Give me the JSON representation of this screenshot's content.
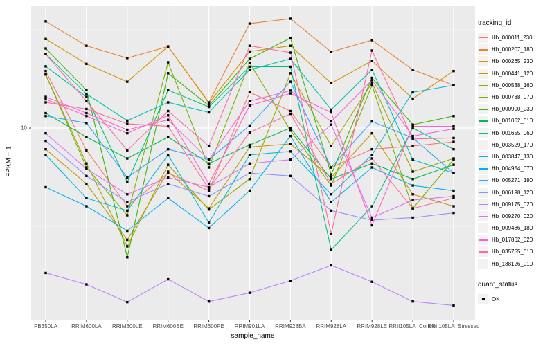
{
  "figure": {
    "background": "#FFFFFF",
    "panel_background": "#EBEBEB",
    "gridline_color": "#FFFFFF",
    "tick_color": "#333333",
    "tick_label_color": "#4D4D4D"
  },
  "axes": {
    "x": {
      "title": "sample_name",
      "tick_labels": [
        "PB350LA",
        "RRIM600LA",
        "RRIM600LE",
        "RRIM600SE",
        "RRIM600PE",
        "RRIM901LA",
        "RRIM928BA",
        "RRIM928LA",
        "RRIM928LE",
        "RRII105LA_Control",
        "RRII105LA_Stressed"
      ]
    },
    "y": {
      "title": "FPKM + 1",
      "scale": "log10",
      "tick_labels": [
        "10"
      ],
      "major_breaks": [
        10
      ],
      "minor_breaks": [
        3.162,
        31.623
      ]
    }
  },
  "legend": {
    "tracking": {
      "title": "tracking_id"
    },
    "quant": {
      "title": "quant_status",
      "items": [
        {
          "label": "OK",
          "marker": "black-square"
        }
      ]
    }
  },
  "chart_data": {
    "type": "line",
    "title": "",
    "xlabel": "sample_name",
    "ylabel": "FPKM + 1",
    "y_scale": "log10",
    "ylim": [
      1.05,
      45
    ],
    "grid": true,
    "legend_position": "right",
    "point_marker": {
      "shape": "square",
      "color": "#000000",
      "size": 3.4
    },
    "categories": [
      "PB350LA",
      "RRIM600LA",
      "RRIM600LE",
      "RRIM600SE",
      "RRIM600PE",
      "RRIM901LA",
      "RRIM928BA",
      "RRIM928LA",
      "RRIM928LE",
      "RRII105LA_Control",
      "RRII105LA_Stressed"
    ],
    "series": [
      {
        "name": "Hb_000011_230",
        "color": "#F8766D",
        "values": [
          19.5,
          7.7,
          4.0,
          5.9,
          4.8,
          15.2,
          12.2,
          6.3,
          7.8,
          8.1,
          8.5
        ]
      },
      {
        "name": "Hb_000207_180",
        "color": "#EA8331",
        "values": [
          34.9,
          26.2,
          22.7,
          26.0,
          13.5,
          34.0,
          36.0,
          24.4,
          28.0,
          19.8,
          16.5
        ]
      },
      {
        "name": "Hb_000265_230",
        "color": "#D89000",
        "values": [
          28.4,
          21.2,
          17.2,
          26.0,
          13.4,
          24.5,
          26.2,
          16.9,
          22.0,
          14.1,
          19.5
        ]
      },
      {
        "name": "Hb_000441_120",
        "color": "#C09B00",
        "values": [
          7.8,
          5.2,
          2.7,
          6.0,
          3.9,
          8.0,
          8.3,
          5.6,
          9.4,
          4.6,
          4.0
        ]
      },
      {
        "name": "Hb_000538_160",
        "color": "#A3A500",
        "values": [
          18.7,
          6.6,
          2.5,
          6.5,
          3.85,
          5.5,
          19.0,
          8.1,
          17.0,
          6.0,
          7.0
        ]
      },
      {
        "name": "Hb_000788_070",
        "color": "#7CAE00",
        "values": [
          18.7,
          6.3,
          3.6,
          21.6,
          6.3,
          21.5,
          9.7,
          5.1,
          16.5,
          3.9,
          6.9
        ]
      },
      {
        "name": "Hb_000900_030",
        "color": "#39B600",
        "values": [
          25.4,
          15.6,
          2.2,
          19.0,
          13.0,
          22.5,
          28.7,
          5.8,
          18.0,
          10.4,
          11.5
        ]
      },
      {
        "name": "Hb_001062_010",
        "color": "#00BB4E",
        "values": [
          11.9,
          9.0,
          7.0,
          9.0,
          6.6,
          8.2,
          10.0,
          5.5,
          6.6,
          5.5,
          6.5
        ]
      },
      {
        "name": "Hb_001655_060",
        "color": "#00C087",
        "values": [
          20.6,
          14.4,
          5.3,
          15.6,
          12.8,
          20.5,
          20.5,
          2.4,
          4.0,
          10.0,
          7.8
        ]
      },
      {
        "name": "Hb_003529_170",
        "color": "#00C0B2",
        "values": [
          23.8,
          14.9,
          10.9,
          13.5,
          12.0,
          19.8,
          22.5,
          12.4,
          19.8,
          6.9,
          5.9
        ]
      },
      {
        "name": "Hb_003847_130",
        "color": "#00BCD8",
        "values": [
          7.3,
          4.4,
          3.8,
          7.3,
          3.3,
          7.3,
          7.6,
          4.6,
          7.3,
          15.2,
          16.5
        ]
      },
      {
        "name": "Hb_004954_070",
        "color": "#00B0F6",
        "values": [
          5.0,
          4.0,
          3.0,
          4.4,
          3.1,
          4.8,
          9.1,
          4.2,
          6.3,
          5.1,
          4.8
        ]
      },
      {
        "name": "Hb_005271_190",
        "color": "#35A2FF",
        "values": [
          11.5,
          10.6,
          5.6,
          7.8,
          6.9,
          10.3,
          17.2,
          6.3,
          10.8,
          8.9,
          5.9
        ]
      },
      {
        "name": "Hb_006198_120",
        "color": "#9590FF",
        "values": [
          8.6,
          5.7,
          4.2,
          5.2,
          4.5,
          5.9,
          5.7,
          3.8,
          3.4,
          3.5,
          3.7
        ]
      },
      {
        "name": "Hb_009175_020",
        "color": "#BF80FF",
        "values": [
          1.83,
          1.6,
          1.3,
          1.7,
          1.31,
          1.45,
          1.67,
          2.0,
          1.65,
          1.31,
          1.25
        ]
      },
      {
        "name": "Hb_009270_020",
        "color": "#DC71FA",
        "values": [
          9.4,
          6.2,
          4.6,
          5.6,
          5.0,
          6.6,
          6.9,
          10.4,
          3.5,
          4.3,
          4.5
        ]
      },
      {
        "name": "Hb_009486_180",
        "color": "#F266E3",
        "values": [
          14.4,
          11.9,
          9.8,
          11.0,
          6.9,
          13.7,
          15.5,
          10.8,
          17.5,
          9.1,
          9.9
        ]
      },
      {
        "name": "Hb_017862_020",
        "color": "#FF61C7",
        "values": [
          14.0,
          11.5,
          9.4,
          11.6,
          5.2,
          13.0,
          15.0,
          12.0,
          3.2,
          10.2,
          10.2
        ]
      },
      {
        "name": "Hb_035755_010",
        "color": "#FF68A1",
        "values": [
          23.8,
          13.7,
          7.7,
          12.2,
          8.1,
          26.2,
          24.2,
          2.9,
          24.8,
          8.8,
          8.9
        ]
      },
      {
        "name": "Hb_188126_010",
        "color": "#FF6C92",
        "values": [
          13.5,
          12.5,
          10.5,
          10.2,
          4.9,
          9.5,
          11.8,
          5.2,
          7.0,
          3.9,
          4.4
        ]
      }
    ]
  }
}
